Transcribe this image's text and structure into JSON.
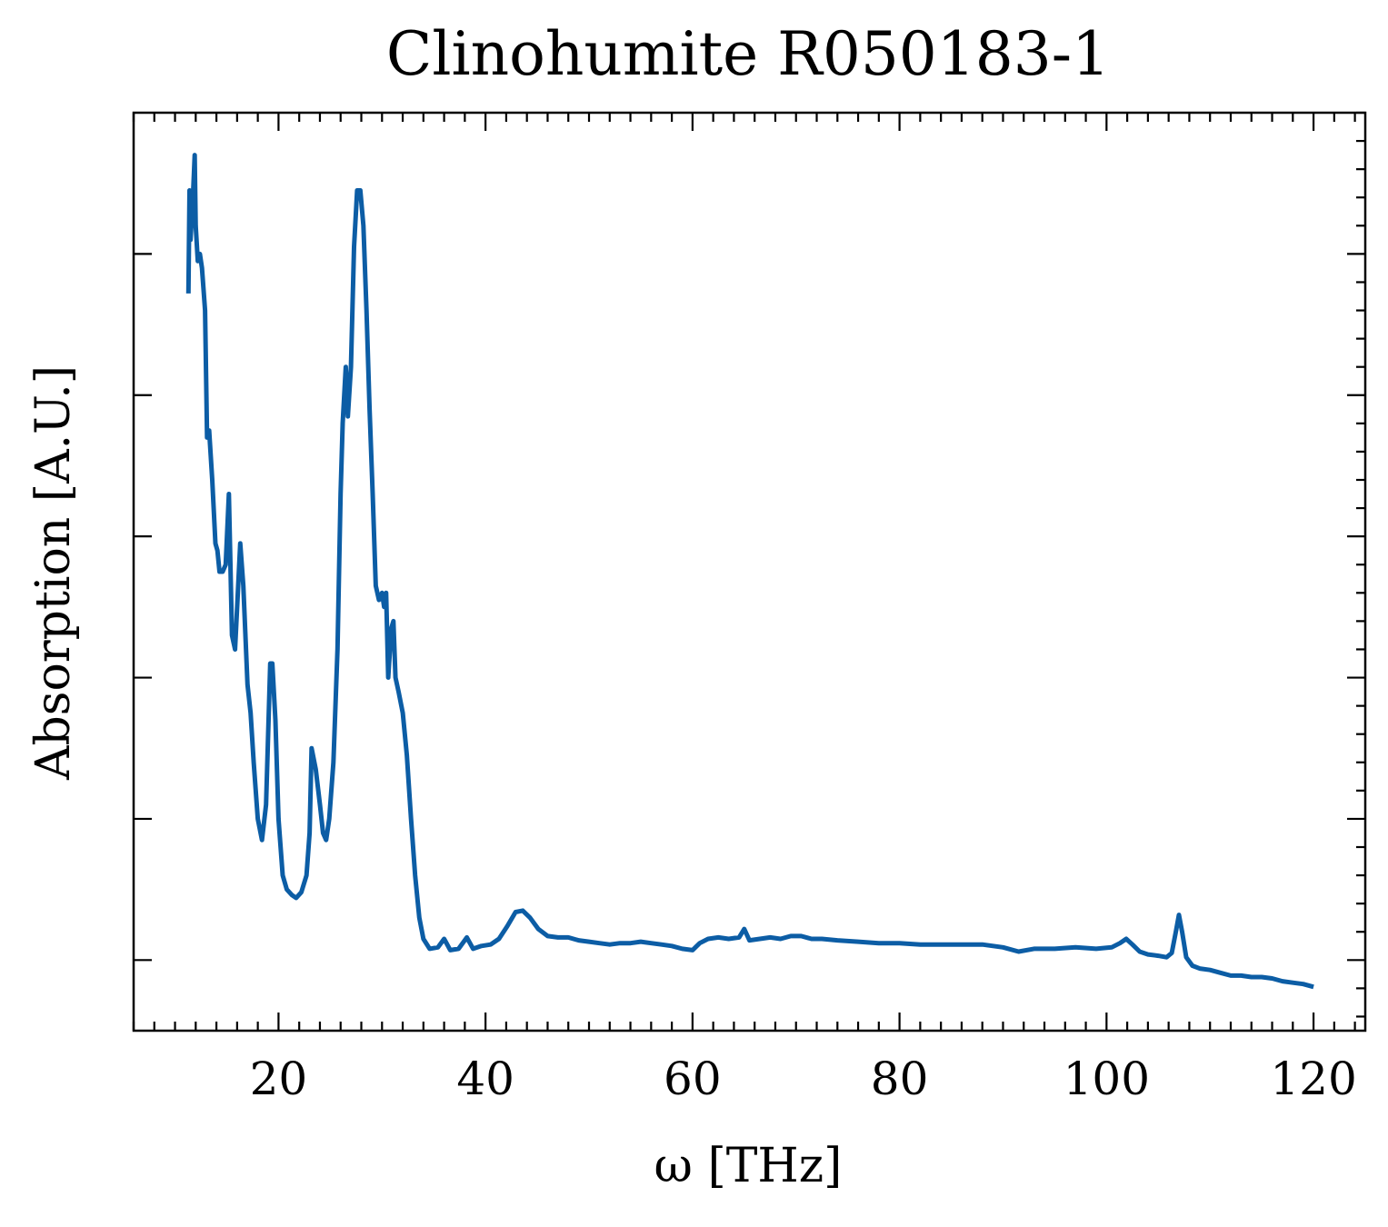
{
  "chart_data": {
    "type": "line",
    "title": "Clinohumite R050183-1",
    "xlabel": "ω [THz]",
    "ylabel": "Absorption [A.U.]",
    "xlim": [
      6,
      125
    ],
    "ylim": [
      -0.05,
      0.6
    ],
    "x_ticks": [
      20,
      40,
      60,
      80,
      100,
      120
    ],
    "x_tick_labels": [
      "20",
      "40",
      "60",
      "80",
      "100",
      "120"
    ],
    "y_ticks": [
      0.0,
      0.1,
      0.2,
      0.3,
      0.4,
      0.5
    ],
    "y_tick_labels": [],
    "x_minor_step": 2,
    "y_minor_step": 0.02,
    "ticks_direction": "in",
    "mirror_ticks": true,
    "grid": false,
    "legend": "none",
    "series_color": "#0c5da5",
    "series": [
      {
        "values": [
          [
            11.3,
            0.472
          ],
          [
            11.4,
            0.545
          ],
          [
            11.5,
            0.51
          ],
          [
            11.7,
            0.535
          ],
          [
            11.9,
            0.57
          ],
          [
            12.0,
            0.52
          ],
          [
            12.2,
            0.495
          ],
          [
            12.4,
            0.5
          ],
          [
            12.6,
            0.49
          ],
          [
            12.9,
            0.46
          ],
          [
            13.1,
            0.37
          ],
          [
            13.3,
            0.375
          ],
          [
            13.6,
            0.34
          ],
          [
            13.9,
            0.295
          ],
          [
            14.1,
            0.29
          ],
          [
            14.3,
            0.275
          ],
          [
            14.6,
            0.275
          ],
          [
            14.9,
            0.28
          ],
          [
            15.2,
            0.33
          ],
          [
            15.5,
            0.23
          ],
          [
            15.8,
            0.22
          ],
          [
            16.0,
            0.25
          ],
          [
            16.3,
            0.295
          ],
          [
            16.6,
            0.265
          ],
          [
            17.0,
            0.195
          ],
          [
            17.3,
            0.175
          ],
          [
            17.6,
            0.14
          ],
          [
            18.0,
            0.1
          ],
          [
            18.4,
            0.085
          ],
          [
            18.8,
            0.11
          ],
          [
            19.2,
            0.21
          ],
          [
            19.4,
            0.21
          ],
          [
            19.7,
            0.17
          ],
          [
            20.0,
            0.1
          ],
          [
            20.4,
            0.06
          ],
          [
            20.8,
            0.05
          ],
          [
            21.3,
            0.046
          ],
          [
            21.7,
            0.044
          ],
          [
            22.2,
            0.048
          ],
          [
            22.7,
            0.06
          ],
          [
            23.0,
            0.09
          ],
          [
            23.2,
            0.15
          ],
          [
            23.6,
            0.135
          ],
          [
            24.0,
            0.11
          ],
          [
            24.3,
            0.09
          ],
          [
            24.6,
            0.085
          ],
          [
            24.9,
            0.1
          ],
          [
            25.3,
            0.14
          ],
          [
            25.7,
            0.22
          ],
          [
            26.0,
            0.33
          ],
          [
            26.2,
            0.38
          ],
          [
            26.5,
            0.42
          ],
          [
            26.7,
            0.385
          ],
          [
            27.0,
            0.42
          ],
          [
            27.3,
            0.505
          ],
          [
            27.6,
            0.545
          ],
          [
            27.9,
            0.545
          ],
          [
            28.2,
            0.52
          ],
          [
            28.5,
            0.46
          ],
          [
            28.8,
            0.39
          ],
          [
            29.1,
            0.33
          ],
          [
            29.4,
            0.265
          ],
          [
            29.7,
            0.255
          ],
          [
            30.0,
            0.26
          ],
          [
            30.2,
            0.25
          ],
          [
            30.4,
            0.26
          ],
          [
            30.6,
            0.2
          ],
          [
            30.9,
            0.235
          ],
          [
            31.1,
            0.24
          ],
          [
            31.3,
            0.2
          ],
          [
            31.6,
            0.19
          ],
          [
            32.0,
            0.175
          ],
          [
            32.4,
            0.145
          ],
          [
            32.8,
            0.1
          ],
          [
            33.2,
            0.06
          ],
          [
            33.6,
            0.03
          ],
          [
            34.0,
            0.015
          ],
          [
            34.6,
            0.008
          ],
          [
            35.4,
            0.009
          ],
          [
            36.0,
            0.015
          ],
          [
            36.6,
            0.007
          ],
          [
            37.4,
            0.008
          ],
          [
            38.2,
            0.016
          ],
          [
            38.8,
            0.008
          ],
          [
            39.6,
            0.01
          ],
          [
            40.5,
            0.011
          ],
          [
            41.3,
            0.015
          ],
          [
            42.1,
            0.024
          ],
          [
            42.9,
            0.034
          ],
          [
            43.6,
            0.035
          ],
          [
            44.3,
            0.03
          ],
          [
            45.1,
            0.022
          ],
          [
            46.0,
            0.017
          ],
          [
            47.0,
            0.016
          ],
          [
            48.0,
            0.016
          ],
          [
            49.0,
            0.014
          ],
          [
            50.0,
            0.013
          ],
          [
            51.0,
            0.012
          ],
          [
            52.0,
            0.011
          ],
          [
            53.0,
            0.012
          ],
          [
            54.0,
            0.012
          ],
          [
            55.0,
            0.013
          ],
          [
            56.0,
            0.012
          ],
          [
            57.0,
            0.011
          ],
          [
            58.0,
            0.01
          ],
          [
            59.0,
            0.008
          ],
          [
            60.0,
            0.007
          ],
          [
            60.7,
            0.012
          ],
          [
            61.5,
            0.015
          ],
          [
            62.5,
            0.016
          ],
          [
            63.5,
            0.015
          ],
          [
            64.5,
            0.016
          ],
          [
            65.0,
            0.022
          ],
          [
            65.5,
            0.014
          ],
          [
            66.5,
            0.015
          ],
          [
            67.5,
            0.016
          ],
          [
            68.5,
            0.015
          ],
          [
            69.5,
            0.017
          ],
          [
            70.5,
            0.017
          ],
          [
            71.5,
            0.015
          ],
          [
            72.5,
            0.015
          ],
          [
            74.0,
            0.014
          ],
          [
            76.0,
            0.013
          ],
          [
            78.0,
            0.012
          ],
          [
            80.0,
            0.012
          ],
          [
            82.0,
            0.011
          ],
          [
            84.0,
            0.011
          ],
          [
            86.0,
            0.011
          ],
          [
            88.0,
            0.011
          ],
          [
            90.0,
            0.009
          ],
          [
            91.5,
            0.006
          ],
          [
            93.0,
            0.008
          ],
          [
            95.0,
            0.008
          ],
          [
            97.0,
            0.009
          ],
          [
            99.0,
            0.008
          ],
          [
            100.5,
            0.009
          ],
          [
            101.3,
            0.012
          ],
          [
            101.9,
            0.015
          ],
          [
            102.5,
            0.011
          ],
          [
            103.2,
            0.006
          ],
          [
            104.0,
            0.004
          ],
          [
            105.0,
            0.003
          ],
          [
            105.8,
            0.002
          ],
          [
            106.3,
            0.005
          ],
          [
            106.7,
            0.02
          ],
          [
            107.0,
            0.032
          ],
          [
            107.3,
            0.02
          ],
          [
            107.7,
            0.002
          ],
          [
            108.3,
            -0.004
          ],
          [
            109.0,
            -0.006
          ],
          [
            110.0,
            -0.007
          ],
          [
            111.0,
            -0.009
          ],
          [
            112.0,
            -0.011
          ],
          [
            113.0,
            -0.011
          ],
          [
            114.0,
            -0.012
          ],
          [
            115.0,
            -0.012
          ],
          [
            116.0,
            -0.013
          ],
          [
            117.0,
            -0.015
          ],
          [
            118.0,
            -0.016
          ],
          [
            119.0,
            -0.017
          ],
          [
            120.0,
            -0.019
          ]
        ]
      }
    ]
  }
}
